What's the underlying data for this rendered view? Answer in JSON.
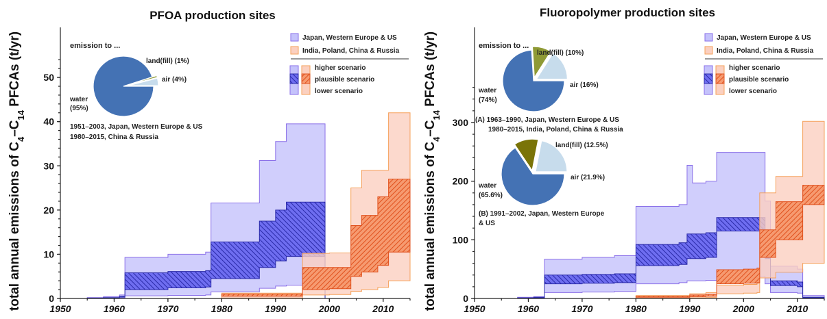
{
  "colors": {
    "band_high_jwu": "#c4c2fb",
    "band_plaus_jwu": "#4f4ed6",
    "line_jwu": "#8a6fe8",
    "band_high_ipcr": "#fbd0c0",
    "band_plaus_ipcr": "#f0703c",
    "line_ipcr": "#f5a05a",
    "pie_water": "#4472b4",
    "pie_air": "#c7dcec",
    "pie_land": "#8f9a35",
    "pie_land_dark": "#7a7408"
  },
  "chart_data": [
    {
      "type": "area",
      "title": "PFOA production sites",
      "ylabel_pre": "total annual emissions of C",
      "ylabel_sub1": "4",
      "ylabel_mid": "–C",
      "ylabel_sub2": "14",
      "ylabel_post": " PFCAs (t/yr)",
      "xlim": [
        1950,
        2015
      ],
      "ylim": [
        0,
        55
      ],
      "xticks": [
        "1950",
        "1960",
        "1970",
        "1980",
        "1990",
        "2000",
        "2010"
      ],
      "yticks": [
        "0",
        "10",
        "20",
        "30",
        "40",
        "50"
      ],
      "legend": {
        "group1": "Japan, Western Europe & US",
        "group2": "India, Poland, China & Russia",
        "higher": "higher scenario",
        "plausible": "plausible scenario",
        "lower": "lower scenario"
      },
      "series": [
        {
          "group": "Japan, Western Europe & US",
          "x": [
            1950,
            1955,
            1958,
            1961,
            1962,
            1970,
            1977,
            1978,
            1987,
            1990,
            1992,
            1999,
            1999.2
          ],
          "higher": [
            0,
            0.2,
            0.4,
            0.8,
            9.3,
            10,
            10.5,
            21.6,
            31.2,
            35.5,
            39.5,
            39.5,
            0
          ],
          "plausible_high": [
            0,
            0.1,
            0.2,
            0.5,
            5.8,
            6.1,
            6.3,
            12.8,
            17.5,
            20,
            21.8,
            21.8,
            0
          ],
          "plausible_low": [
            0,
            0.05,
            0.1,
            0.3,
            2.0,
            2.4,
            2.6,
            4.5,
            7.0,
            8.5,
            9.5,
            9.5,
            0
          ],
          "lower": [
            0,
            0,
            0,
            0.1,
            0.6,
            0.7,
            0.8,
            1.5,
            2.3,
            2.8,
            3.0,
            3.0,
            0
          ]
        },
        {
          "group": "India, Poland, China & Russia",
          "x": [
            1980,
            1995,
            2000,
            2004,
            2006,
            2009,
            2011,
            2015
          ],
          "higher": [
            1.2,
            10.2,
            10.3,
            25,
            29,
            29,
            42,
            42
          ],
          "plausible_high": [
            1.0,
            7.0,
            7.0,
            16.5,
            18.8,
            23,
            27,
            27
          ],
          "plausible_low": [
            0.5,
            2.0,
            2.2,
            5.0,
            6.0,
            7.5,
            10.5,
            10.5
          ],
          "lower": [
            0.1,
            0.8,
            0.9,
            1.6,
            2.0,
            2.5,
            4.0,
            4.0
          ]
        }
      ],
      "inset": {
        "title": "emission to ...",
        "slices": [
          {
            "label": "water",
            "pct": "(95%)",
            "value": 95
          },
          {
            "label": "air (4%)",
            "pct": "",
            "value": 4
          },
          {
            "label": "land(fill) (1%)",
            "pct": "",
            "value": 1
          }
        ],
        "caption1": "1951–2003, Japan, Western Europe & US",
        "caption2": "1980–2015, China & Russia"
      }
    },
    {
      "type": "area",
      "title": "Fluoropolymer production sites",
      "ylabel_pre": "total annual emissions of C",
      "ylabel_sub1": "4",
      "ylabel_mid": "–C",
      "ylabel_sub2": "14",
      "ylabel_post": " PFCAs (t/yr)",
      "xlim": [
        1950,
        2015
      ],
      "ylim": [
        0,
        370
      ],
      "xticks": [
        "1950",
        "1960",
        "1970",
        "1980",
        "1990",
        "2000",
        "2010"
      ],
      "yticks": [
        "0",
        "100",
        "200",
        "300"
      ],
      "legend": {
        "group1": "Japan, Western Europe & US",
        "group2": "India, Poland, China & Russia",
        "higher": "higher scenario",
        "plausible": "plausible scenario",
        "lower": "lower scenario"
      },
      "series": [
        {
          "group": "Japan, Western Europe & US",
          "x": [
            1950,
            1958,
            1961,
            1963,
            1970,
            1976,
            1980,
            1988,
            1989.5,
            1990.5,
            1993,
            1995,
            2002,
            2004,
            2005,
            2010,
            2011,
            2015
          ],
          "higher": [
            0,
            2,
            3,
            67,
            70,
            73,
            157,
            160,
            227,
            197,
            200,
            249,
            249,
            166,
            55,
            50,
            5,
            5
          ],
          "plausible_high": [
            0,
            1,
            2,
            40,
            41,
            42,
            92,
            95,
            110,
            110,
            112,
            138,
            138,
            90,
            30,
            28,
            2,
            2
          ],
          "plausible_low": [
            0,
            0.5,
            1,
            25,
            26,
            27,
            56,
            58,
            68,
            68,
            70,
            115,
            115,
            68,
            22,
            20,
            1,
            1
          ],
          "lower": [
            0,
            0,
            0.5,
            10,
            11,
            12,
            25,
            27,
            30,
            30,
            31,
            38,
            38,
            25,
            10,
            9,
            0.5,
            0.5
          ]
        },
        {
          "group": "India, Poland, China & Russia",
          "x": [
            1980,
            1990,
            1993,
            1995,
            2000,
            2002.5,
            2003,
            2005,
            2006,
            2010,
            2011,
            2015
          ],
          "higher": [
            5,
            8,
            10,
            22,
            24,
            26,
            180,
            180,
            208,
            208,
            302,
            302
          ],
          "plausible_high": [
            4,
            6,
            7,
            49,
            50,
            52,
            117,
            117,
            165,
            165,
            193,
            193
          ],
          "plausible_low": [
            2,
            3,
            4,
            25,
            26,
            27,
            70,
            70,
            100,
            100,
            160,
            160
          ],
          "lower": [
            0.5,
            1,
            1.5,
            8,
            9,
            10,
            35,
            35,
            45,
            45,
            60,
            60
          ]
        }
      ],
      "inset_a": {
        "title": "emission to ...",
        "slices": [
          {
            "label": "water",
            "pct": "(74%)",
            "value": 74
          },
          {
            "label": "air (16%)",
            "pct": "",
            "value": 16
          },
          {
            "label": "land(fill) (10%)",
            "pct": "",
            "value": 10
          }
        ],
        "caption1": "(A) 1963–1990, Japan, Western Europe & US",
        "caption2": "1980–2015, India, Poland, China & Russia"
      },
      "inset_b": {
        "slices": [
          {
            "label": "water",
            "pct": "(65.6%)",
            "value": 65.6
          },
          {
            "label": "air (21.9%)",
            "pct": "",
            "value": 21.9
          },
          {
            "label": "land(fill) (12.5%)",
            "pct": "",
            "value": 12.5
          }
        ],
        "caption1": "(B) 1991–2002, Japan, Western Europe",
        "caption2": "& US"
      }
    }
  ]
}
